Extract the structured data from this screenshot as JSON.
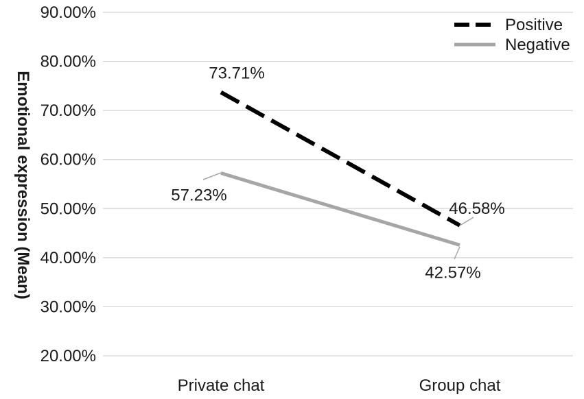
{
  "chart_data": {
    "type": "line",
    "title": "",
    "xlabel": "",
    "ylabel": "Emotional expression (Mean)",
    "categories": [
      "Private chat",
      "Group chat"
    ],
    "ylim": [
      20,
      90
    ],
    "yticks": [
      20,
      30,
      40,
      50,
      60,
      70,
      80,
      90
    ],
    "ytick_labels": [
      "20.00%",
      "30.00%",
      "40.00%",
      "50.00%",
      "60.00%",
      "70.00%",
      "80.00%",
      "90.00%"
    ],
    "grid": "horizontal",
    "legend_position": "top-right",
    "series": [
      {
        "name": "Positive",
        "values": [
          73.71,
          46.58
        ],
        "labels": [
          "73.71%",
          "46.58%"
        ],
        "color": "#000000",
        "style": "dashed"
      },
      {
        "name": "Negative",
        "values": [
          57.23,
          42.57
        ],
        "labels": [
          "57.23%",
          "42.57%"
        ],
        "color": "#a6a6a6",
        "style": "solid"
      }
    ]
  }
}
